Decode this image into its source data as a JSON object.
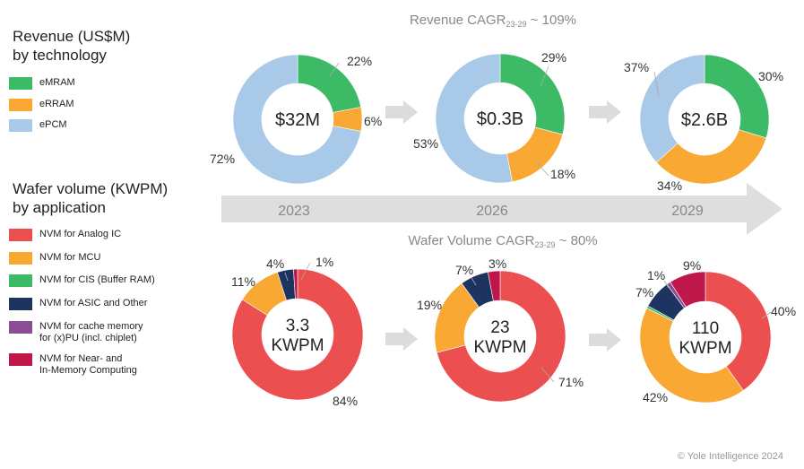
{
  "chart_data": {
    "type": "pie",
    "revenue": {
      "title_prefix": "Revenue CAGR",
      "title_sub": "23-29",
      "title_suffix": " ~ 109%",
      "legend_title": [
        "Revenue (US$M)",
        "by technology"
      ],
      "legend": [
        {
          "name": "eMRAM",
          "color": "#3dba65"
        },
        {
          "name": "eRRAM",
          "color": "#f8a833"
        },
        {
          "name": "ePCM",
          "color": "#a8c9e8"
        }
      ],
      "charts": [
        {
          "year": "2023",
          "center": [
            "$32M"
          ],
          "values": [
            22,
            6,
            72
          ],
          "labels": [
            "22%",
            "6%",
            "72%"
          ]
        },
        {
          "year": "2026",
          "center": [
            "$0.3B"
          ],
          "values": [
            29,
            18,
            53
          ],
          "labels": [
            "29%",
            "18%",
            "53%"
          ]
        },
        {
          "year": "2029",
          "center": [
            "$2.6B"
          ],
          "values": [
            30,
            34,
            37
          ],
          "labels": [
            "30%",
            "34%",
            "37%"
          ]
        }
      ]
    },
    "wafer": {
      "title_prefix": "Wafer Volume CAGR",
      "title_sub": "23-29",
      "title_suffix": " ~ 80%",
      "legend_title": [
        "Wafer volume (KWPM)",
        "by application"
      ],
      "legend": [
        {
          "name": "NVM for Analog IC",
          "color": "#ec4f4f"
        },
        {
          "name": "NVM for MCU",
          "color": "#f8a833"
        },
        {
          "name": "NVM for CIS (Buffer RAM)",
          "color": "#3dba65"
        },
        {
          "name": "NVM for ASIC and Other",
          "color": "#1d3461"
        },
        {
          "name": "NVM for cache memory\nfor (x)PU (incl. chiplet)",
          "color": "#8a4e96"
        },
        {
          "name": "NVM for Near- and\nIn-Memory Computing",
          "color": "#c0174a"
        }
      ],
      "charts": [
        {
          "center": [
            "3.3",
            "KWPM"
          ],
          "values": [
            84,
            11,
            0,
            4,
            0,
            1
          ],
          "labels": [
            "84%",
            "11%",
            "",
            "4%",
            "",
            "1%"
          ]
        },
        {
          "center": [
            "23",
            "KWPM"
          ],
          "values": [
            71,
            19,
            0,
            7,
            0,
            3
          ],
          "labels": [
            "71%",
            "19%",
            "",
            "7%",
            "",
            "3%"
          ]
        },
        {
          "center": [
            "110",
            "KWPM"
          ],
          "values": [
            40,
            42,
            0.6,
            7,
            1,
            9
          ],
          "labels": [
            "40%",
            "42%",
            "",
            "7%",
            "1%",
            "9%"
          ]
        }
      ]
    }
  },
  "timeline_years": [
    "2023",
    "2026",
    "2029"
  ],
  "copyright": "© Yole Intelligence 2024"
}
